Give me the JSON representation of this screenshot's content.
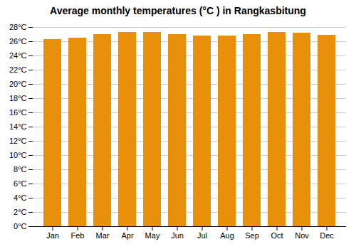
{
  "chart_data": {
    "type": "bar",
    "title": "Average monthly temperatures (°C ) in Rangkasbitung",
    "categories": [
      "Jan",
      "Feb",
      "Mar",
      "Apr",
      "May",
      "Jun",
      "Jul",
      "Aug",
      "Sep",
      "Oct",
      "Nov",
      "Dec"
    ],
    "values": [
      26.3,
      26.5,
      27.0,
      27.3,
      27.3,
      27.0,
      26.8,
      26.8,
      27.0,
      27.3,
      27.2,
      26.9
    ],
    "color": "#E8900A",
    "ylim": [
      0,
      28
    ],
    "yticks": [
      {
        "value": 0,
        "label": "0°C"
      },
      {
        "value": 2,
        "label": "2°C"
      },
      {
        "value": 4,
        "label": "4°C"
      },
      {
        "value": 6,
        "label": "6°C"
      },
      {
        "value": 8,
        "label": "8°C"
      },
      {
        "value": 10,
        "label": "10°C"
      },
      {
        "value": 12,
        "label": "12°C"
      },
      {
        "value": 14,
        "label": "14°C"
      },
      {
        "value": 16,
        "label": "16°C"
      },
      {
        "value": 18,
        "label": "18°C"
      },
      {
        "value": 20,
        "label": "20°C"
      },
      {
        "value": 22,
        "label": "22°C"
      },
      {
        "value": 24,
        "label": "24°C"
      },
      {
        "value": 26,
        "label": "26°C"
      },
      {
        "value": 28,
        "label": "28°C"
      }
    ],
    "grid": true
  }
}
